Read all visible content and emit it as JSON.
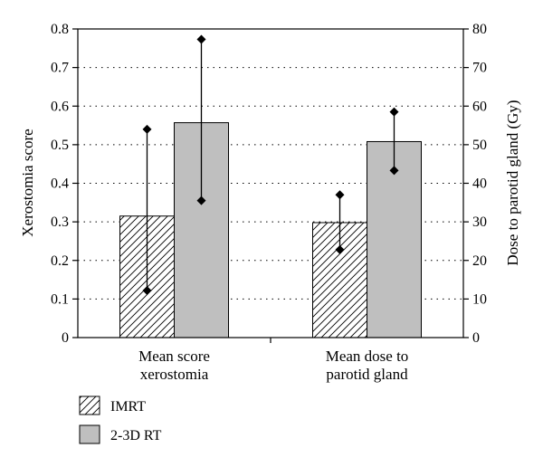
{
  "chart_data": {
    "type": "bar",
    "categories": [
      [
        "Mean score",
        "xerostomia"
      ],
      [
        "Mean dose to",
        "parotid gland"
      ]
    ],
    "series": [
      {
        "name": "IMRT",
        "pattern": "hatch",
        "values_left_axis": [
          0.315,
          0.298
        ],
        "error_low": [
          0.122,
          0.228
        ],
        "error_high": [
          0.54,
          0.37
        ]
      },
      {
        "name": "2-3D RT",
        "color": "#bfbfbf",
        "values_left_axis": [
          0.557,
          0.508
        ],
        "error_low": [
          0.355,
          0.433
        ],
        "error_high": [
          0.773,
          0.585
        ]
      }
    ],
    "ylabel": "Xerostomia score",
    "y2label": "Dose to parotid gland (Gy)",
    "ylim": [
      0,
      0.8
    ],
    "y2lim": [
      0,
      80
    ],
    "yticks": [
      "0",
      "0.1",
      "0.2",
      "0.3",
      "0.4",
      "0.5",
      "0.6",
      "0.7",
      "0.8"
    ],
    "y2ticks": [
      "0",
      "10",
      "20",
      "30",
      "40",
      "50",
      "60",
      "70",
      "80"
    ],
    "grid": "horizontal-dotted",
    "legend": "bottom-left"
  }
}
